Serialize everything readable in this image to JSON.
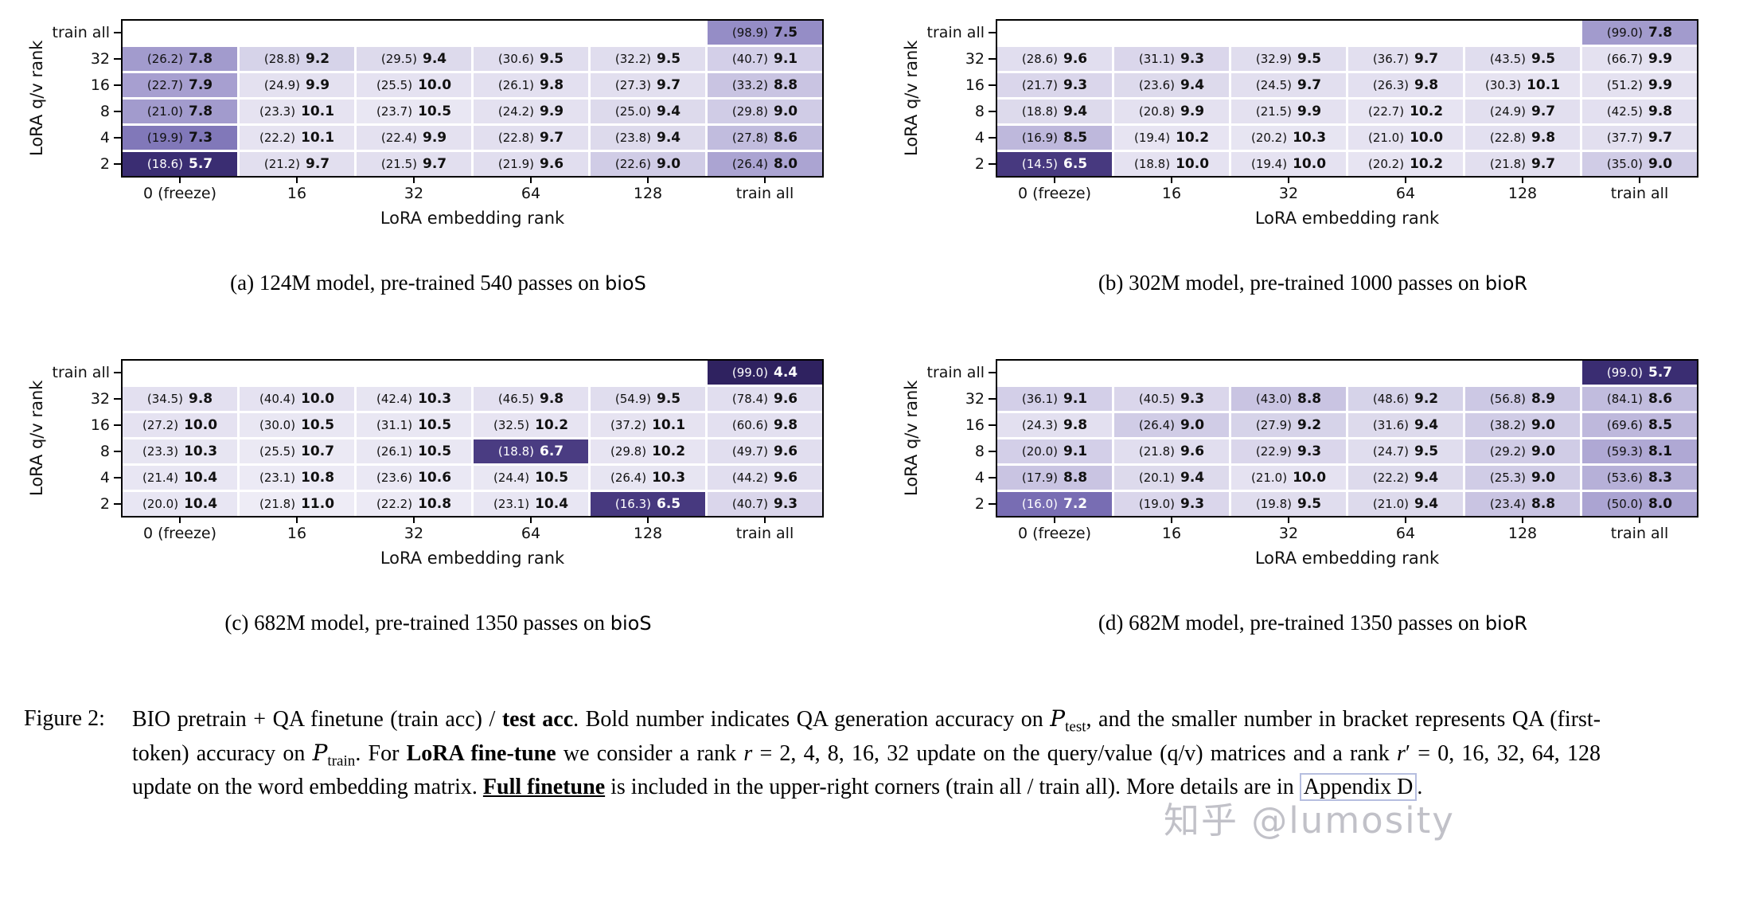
{
  "heatmap_style": {
    "empty_color": "#ffffff",
    "text_dark": "#111111",
    "text_light": "#ffffff",
    "color_anchors": [
      [
        4.4,
        "#2f2260"
      ],
      [
        5.7,
        "#3a2d72"
      ],
      [
        6.7,
        "#4a3c82"
      ],
      [
        7.0,
        "#6458a6"
      ],
      [
        7.5,
        "#958dc6"
      ],
      [
        8.0,
        "#aba4d2"
      ],
      [
        9.0,
        "#d0cce6"
      ],
      [
        9.5,
        "#e0ddee"
      ],
      [
        11.0,
        "#eeecf6"
      ]
    ]
  },
  "chart_data": [
    {
      "type": "heatmap",
      "panel": "a",
      "caption_prefix": "(a) 124M model, pre-trained 540 passes on ",
      "dataset": "bioS",
      "xlabel": "LoRA embedding rank",
      "ylabel": "LoRA q/v rank",
      "x_ticks": [
        "0 (freeze)",
        "16",
        "32",
        "64",
        "128",
        "train all"
      ],
      "y_ticks": [
        "train all",
        "32",
        "16",
        "8",
        "4",
        "2"
      ],
      "cell_format": "(train acc) test acc",
      "cells": [
        [
          null,
          null,
          null,
          null,
          null,
          [
            98.9,
            7.5
          ]
        ],
        [
          [
            26.2,
            7.8
          ],
          [
            28.8,
            9.2
          ],
          [
            29.5,
            9.4
          ],
          [
            30.6,
            9.5
          ],
          [
            32.2,
            9.5
          ],
          [
            40.7,
            9.1
          ]
        ],
        [
          [
            22.7,
            7.9
          ],
          [
            24.9,
            9.9
          ],
          [
            25.5,
            10.0
          ],
          [
            26.1,
            9.8
          ],
          [
            27.3,
            9.7
          ],
          [
            33.2,
            8.8
          ]
        ],
        [
          [
            21.0,
            7.8
          ],
          [
            23.3,
            10.1
          ],
          [
            23.7,
            10.5
          ],
          [
            24.2,
            9.9
          ],
          [
            25.0,
            9.4
          ],
          [
            29.8,
            9.0
          ]
        ],
        [
          [
            19.9,
            7.3
          ],
          [
            22.2,
            10.1
          ],
          [
            22.4,
            9.9
          ],
          [
            22.8,
            9.7
          ],
          [
            23.8,
            9.4
          ],
          [
            27.8,
            8.6
          ]
        ],
        [
          [
            18.6,
            5.7
          ],
          [
            21.2,
            9.7
          ],
          [
            21.5,
            9.7
          ],
          [
            21.9,
            9.6
          ],
          [
            22.6,
            9.0
          ],
          [
            26.4,
            8.0
          ]
        ]
      ]
    },
    {
      "type": "heatmap",
      "panel": "b",
      "caption_prefix": "(b) 302M model, pre-trained 1000 passes on ",
      "dataset": "bioR",
      "xlabel": "LoRA embedding rank",
      "ylabel": "LoRA q/v rank",
      "x_ticks": [
        "0 (freeze)",
        "16",
        "32",
        "64",
        "128",
        "train all"
      ],
      "y_ticks": [
        "train all",
        "32",
        "16",
        "8",
        "4",
        "2"
      ],
      "cell_format": "(train acc) test acc",
      "cells": [
        [
          null,
          null,
          null,
          null,
          null,
          [
            99.0,
            7.8
          ]
        ],
        [
          [
            28.6,
            9.6
          ],
          [
            31.1,
            9.3
          ],
          [
            32.9,
            9.5
          ],
          [
            36.7,
            9.7
          ],
          [
            43.5,
            9.5
          ],
          [
            66.7,
            9.9
          ]
        ],
        [
          [
            21.7,
            9.3
          ],
          [
            23.6,
            9.4
          ],
          [
            24.5,
            9.7
          ],
          [
            26.3,
            9.8
          ],
          [
            30.3,
            10.1
          ],
          [
            51.2,
            9.9
          ]
        ],
        [
          [
            18.8,
            9.4
          ],
          [
            20.8,
            9.9
          ],
          [
            21.5,
            9.9
          ],
          [
            22.7,
            10.2
          ],
          [
            24.9,
            9.7
          ],
          [
            42.5,
            9.8
          ]
        ],
        [
          [
            16.9,
            8.5
          ],
          [
            19.4,
            10.2
          ],
          [
            20.2,
            10.3
          ],
          [
            21.0,
            10.0
          ],
          [
            22.8,
            9.8
          ],
          [
            37.7,
            9.7
          ]
        ],
        [
          [
            14.5,
            6.5
          ],
          [
            18.8,
            10.0
          ],
          [
            19.4,
            10.0
          ],
          [
            20.2,
            10.2
          ],
          [
            21.8,
            9.7
          ],
          [
            35.0,
            9.0
          ]
        ]
      ]
    },
    {
      "type": "heatmap",
      "panel": "c",
      "caption_prefix": "(c) 682M model, pre-trained 1350 passes on ",
      "dataset": "bioS",
      "xlabel": "LoRA embedding rank",
      "ylabel": "LoRA q/v rank",
      "x_ticks": [
        "0 (freeze)",
        "16",
        "32",
        "64",
        "128",
        "train all"
      ],
      "y_ticks": [
        "train all",
        "32",
        "16",
        "8",
        "4",
        "2"
      ],
      "cell_format": "(train acc) test acc",
      "cells": [
        [
          null,
          null,
          null,
          null,
          null,
          [
            99.0,
            4.4
          ]
        ],
        [
          [
            34.5,
            9.8
          ],
          [
            40.4,
            10.0
          ],
          [
            42.4,
            10.3
          ],
          [
            46.5,
            9.8
          ],
          [
            54.9,
            9.5
          ],
          [
            78.4,
            9.6
          ]
        ],
        [
          [
            27.2,
            10.0
          ],
          [
            30.0,
            10.5
          ],
          [
            31.1,
            10.5
          ],
          [
            32.5,
            10.2
          ],
          [
            37.2,
            10.1
          ],
          [
            60.6,
            9.8
          ]
        ],
        [
          [
            23.3,
            10.3
          ],
          [
            25.5,
            10.7
          ],
          [
            26.1,
            10.5
          ],
          [
            18.8,
            6.7
          ],
          [
            29.8,
            10.2
          ],
          [
            49.7,
            9.6
          ]
        ],
        [
          [
            21.4,
            10.4
          ],
          [
            23.1,
            10.8
          ],
          [
            23.6,
            10.6
          ],
          [
            24.4,
            10.5
          ],
          [
            26.4,
            10.3
          ],
          [
            44.2,
            9.6
          ]
        ],
        [
          [
            20.0,
            10.4
          ],
          [
            21.8,
            11.0
          ],
          [
            22.2,
            10.8
          ],
          [
            23.1,
            10.4
          ],
          [
            16.3,
            6.5
          ],
          [
            40.7,
            9.3
          ]
        ]
      ]
    },
    {
      "type": "heatmap",
      "panel": "d",
      "caption_prefix": "(d) 682M model, pre-trained 1350 passes on ",
      "dataset": "bioR",
      "xlabel": "LoRA embedding rank",
      "ylabel": "LoRA q/v rank",
      "x_ticks": [
        "0 (freeze)",
        "16",
        "32",
        "64",
        "128",
        "train all"
      ],
      "y_ticks": [
        "train all",
        "32",
        "16",
        "8",
        "4",
        "2"
      ],
      "cell_format": "(train acc) test acc",
      "cells": [
        [
          null,
          null,
          null,
          null,
          null,
          [
            99.0,
            5.7
          ]
        ],
        [
          [
            36.1,
            9.1
          ],
          [
            40.5,
            9.3
          ],
          [
            43.0,
            8.8
          ],
          [
            48.6,
            9.2
          ],
          [
            56.8,
            8.9
          ],
          [
            84.1,
            8.6
          ]
        ],
        [
          [
            24.3,
            9.8
          ],
          [
            26.4,
            9.0
          ],
          [
            27.9,
            9.2
          ],
          [
            31.6,
            9.4
          ],
          [
            38.2,
            9.0
          ],
          [
            69.6,
            8.5
          ]
        ],
        [
          [
            20.0,
            9.1
          ],
          [
            21.8,
            9.6
          ],
          [
            22.9,
            9.3
          ],
          [
            24.7,
            9.5
          ],
          [
            29.2,
            9.0
          ],
          [
            59.3,
            8.1
          ]
        ],
        [
          [
            17.9,
            8.8
          ],
          [
            20.1,
            9.4
          ],
          [
            21.0,
            10.0
          ],
          [
            22.2,
            9.4
          ],
          [
            25.3,
            9.0
          ],
          [
            53.6,
            8.3
          ]
        ],
        [
          [
            16.0,
            7.2
          ],
          [
            19.0,
            9.3
          ],
          [
            19.8,
            9.5
          ],
          [
            21.0,
            9.4
          ],
          [
            23.4,
            8.8
          ],
          [
            50.0,
            8.0
          ]
        ]
      ]
    }
  ],
  "figure_caption": {
    "label": "Figure 2:",
    "segments": [
      {
        "t": "BIO pretrain + QA finetune (train acc) / "
      },
      {
        "t": "test acc",
        "b": true
      },
      {
        "t": ". Bold number indicates QA generation accuracy on "
      },
      {
        "t": "P",
        "cal": true
      },
      {
        "t": "test",
        "sub": true
      },
      {
        "t": ", and the smaller number in bracket represents QA (first-token) accuracy on "
      },
      {
        "t": "P",
        "cal": true
      },
      {
        "t": "train",
        "sub": true
      },
      {
        "t": ". For "
      },
      {
        "t": "LoRA fine-tune",
        "b": true
      },
      {
        "t": " we consider a rank "
      },
      {
        "t": "r",
        "i": true
      },
      {
        "t": " = 2, 4, 8, 16, 32 update on the query/value (q/v) matrices and a rank "
      },
      {
        "t": "r",
        "i": true
      },
      {
        "t": "′"
      },
      {
        "t": " = 0, 16, 32, 64, 128 update on the word embedding matrix. "
      },
      {
        "t": "Full finetune",
        "b": true,
        "u": true
      },
      {
        "t": " is included in the upper-right corners (train all / train all). More details are in "
      },
      {
        "t": "Appendix D",
        "box": true
      },
      {
        "t": "."
      }
    ]
  },
  "watermark": "知乎 @lumosity"
}
